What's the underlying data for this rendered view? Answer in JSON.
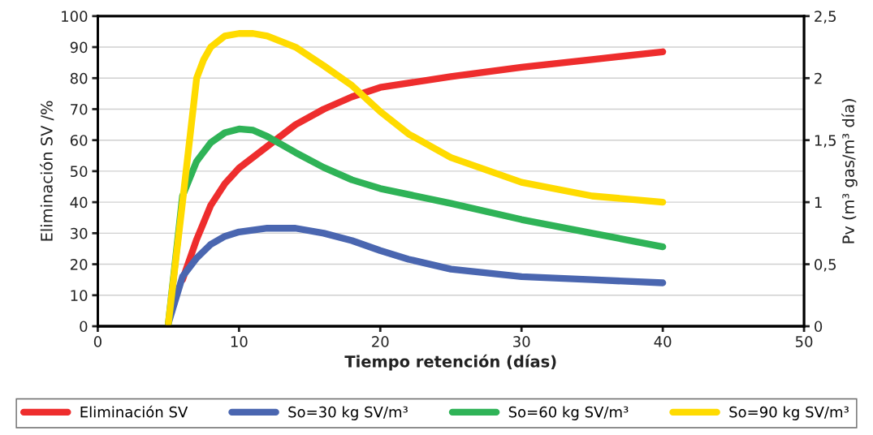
{
  "chart_data": {
    "type": "line",
    "xlabel": "Tiempo retención (días)",
    "ylabel": "Eliminación SV /%",
    "y2label": "Pv (m³ gas/m³ día)",
    "xlim": [
      0,
      50
    ],
    "xticks": [
      0,
      10,
      20,
      30,
      40,
      50
    ],
    "ylim": [
      0,
      100
    ],
    "yticks": [
      0,
      10,
      20,
      30,
      40,
      50,
      60,
      70,
      80,
      90,
      100
    ],
    "y2lim": [
      0,
      2.5
    ],
    "y2ticks": [
      0,
      {
        "value": 0.5,
        "label": "0,5"
      },
      1,
      {
        "value": 1.5,
        "label": "1,5"
      },
      2,
      {
        "value": 2.5,
        "label": "2,5"
      }
    ],
    "grid": "y",
    "legend": "bottom",
    "marker": "none",
    "line_style": "solid",
    "series": [
      {
        "name": "Eliminación SV",
        "color": "#ee2d2d",
        "x": [
          6,
          7,
          8,
          9,
          10,
          12,
          14,
          16,
          18,
          20,
          25,
          30,
          35,
          40
        ],
        "values": [
          15,
          28,
          39,
          46,
          51,
          58,
          65,
          70,
          74,
          77,
          80.5,
          83.5,
          86,
          88.5
        ]
      },
      {
        "name": "So=30 kg SV/m³",
        "color": "#4a66b0",
        "axis": "y2",
        "x": [
          5,
          6,
          7,
          8,
          9,
          10,
          12,
          14,
          16,
          18,
          20,
          22,
          25,
          30,
          35,
          40
        ],
        "values": [
          0.025,
          0.4,
          0.55,
          0.66,
          0.725,
          0.76,
          0.79,
          0.79,
          0.75,
          0.69,
          0.61,
          0.54,
          0.46,
          0.4,
          0.375,
          0.35
        ]
      },
      {
        "name": "So=60 kg SV/m³",
        "color": "#2fb357",
        "axis": "y2",
        "x": [
          5,
          6,
          7,
          8,
          9,
          10,
          11,
          12,
          14,
          16,
          18,
          20,
          25,
          30,
          35,
          40
        ],
        "values": [
          0.025,
          1.05,
          1.33,
          1.48,
          1.56,
          1.59,
          1.58,
          1.53,
          1.4,
          1.28,
          1.18,
          1.11,
          0.99,
          0.86,
          0.75,
          0.64
        ]
      },
      {
        "name": "So=90 kg SV/m³",
        "color": "#ffdb00",
        "axis": "y2",
        "x": [
          5,
          6,
          7,
          7.5,
          8,
          9,
          10,
          11,
          12,
          14,
          16,
          18,
          20,
          22,
          25,
          30,
          35,
          40
        ],
        "values": [
          0.025,
          1.0,
          2.0,
          2.15,
          2.25,
          2.34,
          2.36,
          2.36,
          2.34,
          2.25,
          2.1,
          1.94,
          1.73,
          1.55,
          1.36,
          1.16,
          1.05,
          1.0
        ]
      }
    ]
  }
}
